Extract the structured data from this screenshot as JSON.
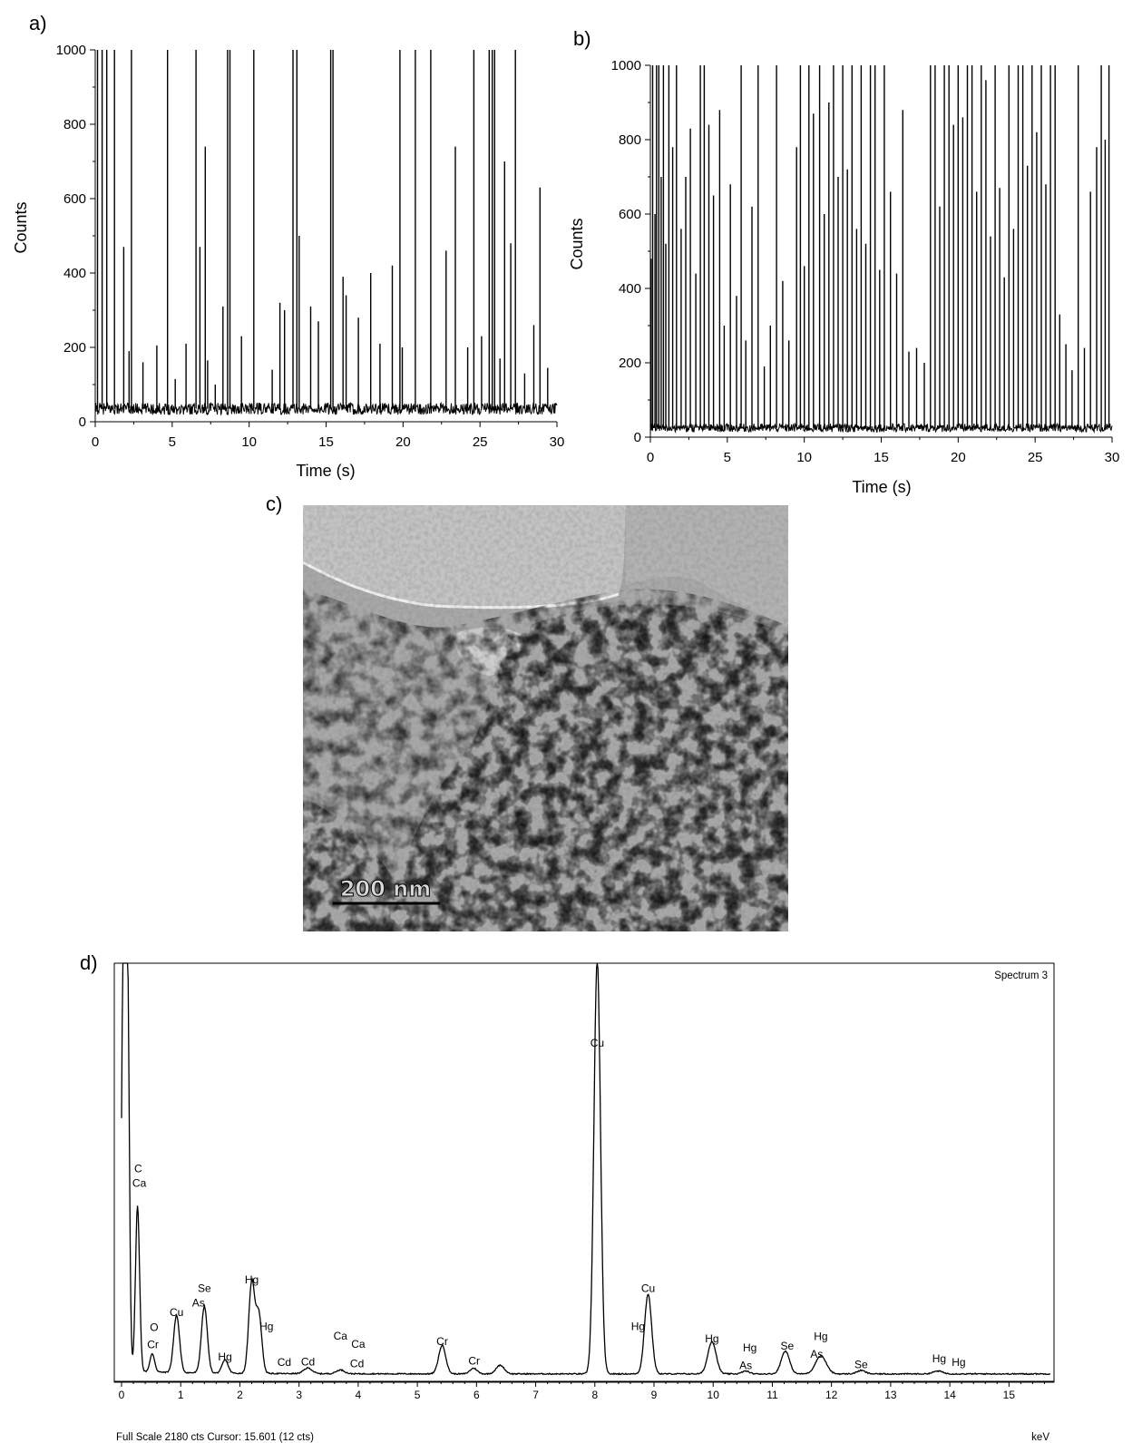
{
  "panels": {
    "a": {
      "letter": "a)"
    },
    "b": {
      "letter": "b)"
    },
    "c": {
      "letter": "c)",
      "scale_bar_label": "200 nm"
    },
    "d": {
      "letter": "d)"
    }
  },
  "chart_data": [
    {
      "type": "line",
      "panel": "a",
      "xlabel": "Time (s)",
      "ylabel": "Counts",
      "xlim": [
        0,
        30
      ],
      "ylim": [
        0,
        1000
      ],
      "xticks": [
        0,
        5,
        10,
        15,
        20,
        25,
        30
      ],
      "yticks": [
        0,
        200,
        400,
        600,
        800,
        1000
      ],
      "baseline_counts": 35,
      "spikes": [
        {
          "t": 0.15,
          "c": 1000
        },
        {
          "t": 0.45,
          "c": 1000
        },
        {
          "t": 0.75,
          "c": 1000
        },
        {
          "t": 1.25,
          "c": 1000
        },
        {
          "t": 1.85,
          "c": 470
        },
        {
          "t": 2.2,
          "c": 190
        },
        {
          "t": 2.35,
          "c": 1000
        },
        {
          "t": 3.1,
          "c": 160
        },
        {
          "t": 4.0,
          "c": 205
        },
        {
          "t": 4.7,
          "c": 1000
        },
        {
          "t": 5.2,
          "c": 115
        },
        {
          "t": 5.9,
          "c": 210
        },
        {
          "t": 6.55,
          "c": 1000
        },
        {
          "t": 6.8,
          "c": 470
        },
        {
          "t": 7.15,
          "c": 740
        },
        {
          "t": 7.3,
          "c": 165
        },
        {
          "t": 7.8,
          "c": 100
        },
        {
          "t": 8.3,
          "c": 310
        },
        {
          "t": 8.6,
          "c": 1000
        },
        {
          "t": 8.75,
          "c": 1000
        },
        {
          "t": 9.5,
          "c": 230
        },
        {
          "t": 10.3,
          "c": 1000
        },
        {
          "t": 11.5,
          "c": 140
        },
        {
          "t": 12.0,
          "c": 320
        },
        {
          "t": 12.3,
          "c": 300
        },
        {
          "t": 12.85,
          "c": 1000
        },
        {
          "t": 13.1,
          "c": 1000
        },
        {
          "t": 13.25,
          "c": 500
        },
        {
          "t": 14.0,
          "c": 310
        },
        {
          "t": 14.5,
          "c": 270
        },
        {
          "t": 15.3,
          "c": 1000
        },
        {
          "t": 15.45,
          "c": 1000
        },
        {
          "t": 16.1,
          "c": 390
        },
        {
          "t": 16.3,
          "c": 340
        },
        {
          "t": 17.1,
          "c": 280
        },
        {
          "t": 17.9,
          "c": 400
        },
        {
          "t": 18.5,
          "c": 210
        },
        {
          "t": 19.3,
          "c": 420
        },
        {
          "t": 19.8,
          "c": 1000
        },
        {
          "t": 19.95,
          "c": 200
        },
        {
          "t": 20.8,
          "c": 1000
        },
        {
          "t": 21.8,
          "c": 1000
        },
        {
          "t": 22.8,
          "c": 460
        },
        {
          "t": 23.4,
          "c": 740
        },
        {
          "t": 24.2,
          "c": 200
        },
        {
          "t": 24.6,
          "c": 1000
        },
        {
          "t": 25.1,
          "c": 230
        },
        {
          "t": 25.6,
          "c": 1000
        },
        {
          "t": 25.8,
          "c": 1000
        },
        {
          "t": 25.95,
          "c": 1000
        },
        {
          "t": 26.3,
          "c": 170
        },
        {
          "t": 26.6,
          "c": 700
        },
        {
          "t": 27.0,
          "c": 480
        },
        {
          "t": 27.3,
          "c": 1000
        },
        {
          "t": 27.9,
          "c": 130
        },
        {
          "t": 28.5,
          "c": 260
        },
        {
          "t": 28.9,
          "c": 630
        },
        {
          "t": 29.4,
          "c": 145
        }
      ]
    },
    {
      "type": "line",
      "panel": "b",
      "xlabel": "Time (s)",
      "ylabel": "Counts",
      "xlim": [
        0,
        30
      ],
      "ylim": [
        0,
        1000
      ],
      "xticks": [
        0,
        5,
        10,
        15,
        20,
        25,
        30
      ],
      "yticks": [
        0,
        200,
        400,
        600,
        800,
        1000
      ],
      "baseline_counts": 25,
      "spikes": [
        {
          "t": 0.05,
          "c": 480
        },
        {
          "t": 0.15,
          "c": 1000
        },
        {
          "t": 0.3,
          "c": 600
        },
        {
          "t": 0.4,
          "c": 1000
        },
        {
          "t": 0.55,
          "c": 1000
        },
        {
          "t": 0.7,
          "c": 700
        },
        {
          "t": 0.85,
          "c": 1000
        },
        {
          "t": 1.0,
          "c": 520
        },
        {
          "t": 1.2,
          "c": 1000
        },
        {
          "t": 1.45,
          "c": 780
        },
        {
          "t": 1.7,
          "c": 1000
        },
        {
          "t": 2.0,
          "c": 560
        },
        {
          "t": 2.3,
          "c": 700
        },
        {
          "t": 2.6,
          "c": 830
        },
        {
          "t": 2.95,
          "c": 440
        },
        {
          "t": 3.25,
          "c": 1000
        },
        {
          "t": 3.5,
          "c": 1000
        },
        {
          "t": 3.8,
          "c": 840
        },
        {
          "t": 4.1,
          "c": 650
        },
        {
          "t": 4.5,
          "c": 880
        },
        {
          "t": 4.8,
          "c": 300
        },
        {
          "t": 5.2,
          "c": 680
        },
        {
          "t": 5.6,
          "c": 380
        },
        {
          "t": 5.9,
          "c": 1000
        },
        {
          "t": 6.2,
          "c": 260
        },
        {
          "t": 6.6,
          "c": 620
        },
        {
          "t": 7.0,
          "c": 1000
        },
        {
          "t": 7.4,
          "c": 190
        },
        {
          "t": 7.8,
          "c": 300
        },
        {
          "t": 8.2,
          "c": 1000
        },
        {
          "t": 8.6,
          "c": 420
        },
        {
          "t": 9.0,
          "c": 260
        },
        {
          "t": 9.5,
          "c": 780
        },
        {
          "t": 9.75,
          "c": 1000
        },
        {
          "t": 10.0,
          "c": 460
        },
        {
          "t": 10.3,
          "c": 1000
        },
        {
          "t": 10.6,
          "c": 870
        },
        {
          "t": 11.0,
          "c": 1000
        },
        {
          "t": 11.3,
          "c": 600
        },
        {
          "t": 11.6,
          "c": 900
        },
        {
          "t": 11.9,
          "c": 1000
        },
        {
          "t": 12.2,
          "c": 700
        },
        {
          "t": 12.5,
          "c": 1000
        },
        {
          "t": 12.8,
          "c": 720
        },
        {
          "t": 13.1,
          "c": 1000
        },
        {
          "t": 13.4,
          "c": 560
        },
        {
          "t": 13.7,
          "c": 1000
        },
        {
          "t": 14.0,
          "c": 520
        },
        {
          "t": 14.3,
          "c": 1000
        },
        {
          "t": 14.6,
          "c": 1000
        },
        {
          "t": 14.9,
          "c": 450
        },
        {
          "t": 15.2,
          "c": 1000
        },
        {
          "t": 15.6,
          "c": 660
        },
        {
          "t": 16.0,
          "c": 440
        },
        {
          "t": 16.4,
          "c": 880
        },
        {
          "t": 16.8,
          "c": 230
        },
        {
          "t": 17.3,
          "c": 240
        },
        {
          "t": 17.8,
          "c": 200
        },
        {
          "t": 18.2,
          "c": 1000
        },
        {
          "t": 18.5,
          "c": 1000
        },
        {
          "t": 18.8,
          "c": 620
        },
        {
          "t": 19.1,
          "c": 1000
        },
        {
          "t": 19.4,
          "c": 1000
        },
        {
          "t": 19.7,
          "c": 840
        },
        {
          "t": 20.0,
          "c": 1000
        },
        {
          "t": 20.3,
          "c": 860
        },
        {
          "t": 20.6,
          "c": 1000
        },
        {
          "t": 20.9,
          "c": 1000
        },
        {
          "t": 21.2,
          "c": 660
        },
        {
          "t": 21.5,
          "c": 1000
        },
        {
          "t": 21.8,
          "c": 960
        },
        {
          "t": 22.1,
          "c": 540
        },
        {
          "t": 22.4,
          "c": 1000
        },
        {
          "t": 22.7,
          "c": 670
        },
        {
          "t": 23.0,
          "c": 430
        },
        {
          "t": 23.3,
          "c": 1000
        },
        {
          "t": 23.6,
          "c": 560
        },
        {
          "t": 23.9,
          "c": 1000
        },
        {
          "t": 24.2,
          "c": 1000
        },
        {
          "t": 24.5,
          "c": 730
        },
        {
          "t": 24.8,
          "c": 1000
        },
        {
          "t": 25.1,
          "c": 820
        },
        {
          "t": 25.4,
          "c": 1000
        },
        {
          "t": 25.7,
          "c": 680
        },
        {
          "t": 26.0,
          "c": 1000
        },
        {
          "t": 26.3,
          "c": 1000
        },
        {
          "t": 26.6,
          "c": 330
        },
        {
          "t": 27.0,
          "c": 250
        },
        {
          "t": 27.4,
          "c": 180
        },
        {
          "t": 27.8,
          "c": 1000
        },
        {
          "t": 28.2,
          "c": 240
        },
        {
          "t": 28.6,
          "c": 660
        },
        {
          "t": 29.0,
          "c": 780
        },
        {
          "t": 29.3,
          "c": 1000
        },
        {
          "t": 29.55,
          "c": 800
        },
        {
          "t": 29.8,
          "c": 1000
        }
      ]
    },
    {
      "type": "line",
      "panel": "d",
      "spectrum_label": "Spectrum 3",
      "x_unit": "keV",
      "xlim": [
        0,
        15.7
      ],
      "xticks": [
        0,
        1,
        2,
        3,
        4,
        5,
        6,
        7,
        8,
        9,
        10,
        11,
        12,
        13,
        14,
        15
      ],
      "full_scale_cts": 2180,
      "status_text": "Full Scale 2180 cts Cursor: 15.601  (12 cts)",
      "baseline_cts": 20,
      "peaks": [
        {
          "e": 0.03,
          "cts": 2180,
          "w": 0.03
        },
        {
          "e": 0.1,
          "cts": 2180,
          "w": 0.03
        },
        {
          "e": 0.27,
          "cts": 870,
          "w": 0.035
        },
        {
          "e": 0.52,
          "cts": 95,
          "w": 0.04
        },
        {
          "e": 0.93,
          "cts": 300,
          "w": 0.05
        },
        {
          "e": 1.4,
          "cts": 350,
          "w": 0.05
        },
        {
          "e": 1.75,
          "cts": 70,
          "w": 0.05
        },
        {
          "e": 2.2,
          "cts": 475,
          "w": 0.05
        },
        {
          "e": 2.32,
          "cts": 310,
          "w": 0.05
        },
        {
          "e": 3.15,
          "cts": 30,
          "w": 0.07
        },
        {
          "e": 3.7,
          "cts": 20,
          "w": 0.07
        },
        {
          "e": 5.42,
          "cts": 150,
          "w": 0.06
        },
        {
          "e": 5.95,
          "cts": 30,
          "w": 0.06
        },
        {
          "e": 6.4,
          "cts": 45,
          "w": 0.07
        },
        {
          "e": 8.04,
          "cts": 2180,
          "w": 0.055
        },
        {
          "e": 8.9,
          "cts": 420,
          "w": 0.06
        },
        {
          "e": 9.98,
          "cts": 170,
          "w": 0.07
        },
        {
          "e": 10.55,
          "cts": 15,
          "w": 0.06
        },
        {
          "e": 11.22,
          "cts": 120,
          "w": 0.07
        },
        {
          "e": 11.82,
          "cts": 95,
          "w": 0.09
        },
        {
          "e": 12.5,
          "cts": 18,
          "w": 0.07
        },
        {
          "e": 13.8,
          "cts": 15,
          "w": 0.08
        }
      ],
      "peak_labels": [
        {
          "text": "C",
          "e": 0.28,
          "cts": 1080
        },
        {
          "text": "Ca",
          "e": 0.3,
          "cts": 1005
        },
        {
          "text": "O",
          "e": 0.55,
          "cts": 245
        },
        {
          "text": "Cr",
          "e": 0.53,
          "cts": 155
        },
        {
          "text": "Cu",
          "e": 0.93,
          "cts": 325
        },
        {
          "text": "As",
          "e": 1.3,
          "cts": 375
        },
        {
          "text": "Se",
          "e": 1.4,
          "cts": 450
        },
        {
          "text": "Hg",
          "e": 1.75,
          "cts": 90
        },
        {
          "text": "Hg",
          "e": 2.2,
          "cts": 495
        },
        {
          "text": "Hg",
          "e": 2.45,
          "cts": 250
        },
        {
          "text": "Cd",
          "e": 2.75,
          "cts": 62
        },
        {
          "text": "Cd",
          "e": 3.15,
          "cts": 65
        },
        {
          "text": "Ca",
          "e": 3.7,
          "cts": 200
        },
        {
          "text": "Ca",
          "e": 4.0,
          "cts": 158
        },
        {
          "text": "Cd",
          "e": 3.98,
          "cts": 55
        },
        {
          "text": "Cr",
          "e": 5.42,
          "cts": 172
        },
        {
          "text": "Cr",
          "e": 5.96,
          "cts": 68
        },
        {
          "text": "Cu",
          "e": 8.04,
          "cts": 1740
        },
        {
          "text": "Hg",
          "e": 8.73,
          "cts": 250
        },
        {
          "text": "Cu",
          "e": 8.9,
          "cts": 450
        },
        {
          "text": "Hg",
          "e": 9.98,
          "cts": 187
        },
        {
          "text": "Hg",
          "e": 10.62,
          "cts": 138
        },
        {
          "text": "As",
          "e": 10.55,
          "cts": 45
        },
        {
          "text": "Se",
          "e": 11.25,
          "cts": 148
        },
        {
          "text": "As",
          "e": 11.75,
          "cts": 105
        },
        {
          "text": "Hg",
          "e": 11.82,
          "cts": 198
        },
        {
          "text": "Se",
          "e": 12.5,
          "cts": 50
        },
        {
          "text": "Hg",
          "e": 13.82,
          "cts": 82
        },
        {
          "text": "Hg",
          "e": 14.15,
          "cts": 62
        }
      ]
    }
  ]
}
